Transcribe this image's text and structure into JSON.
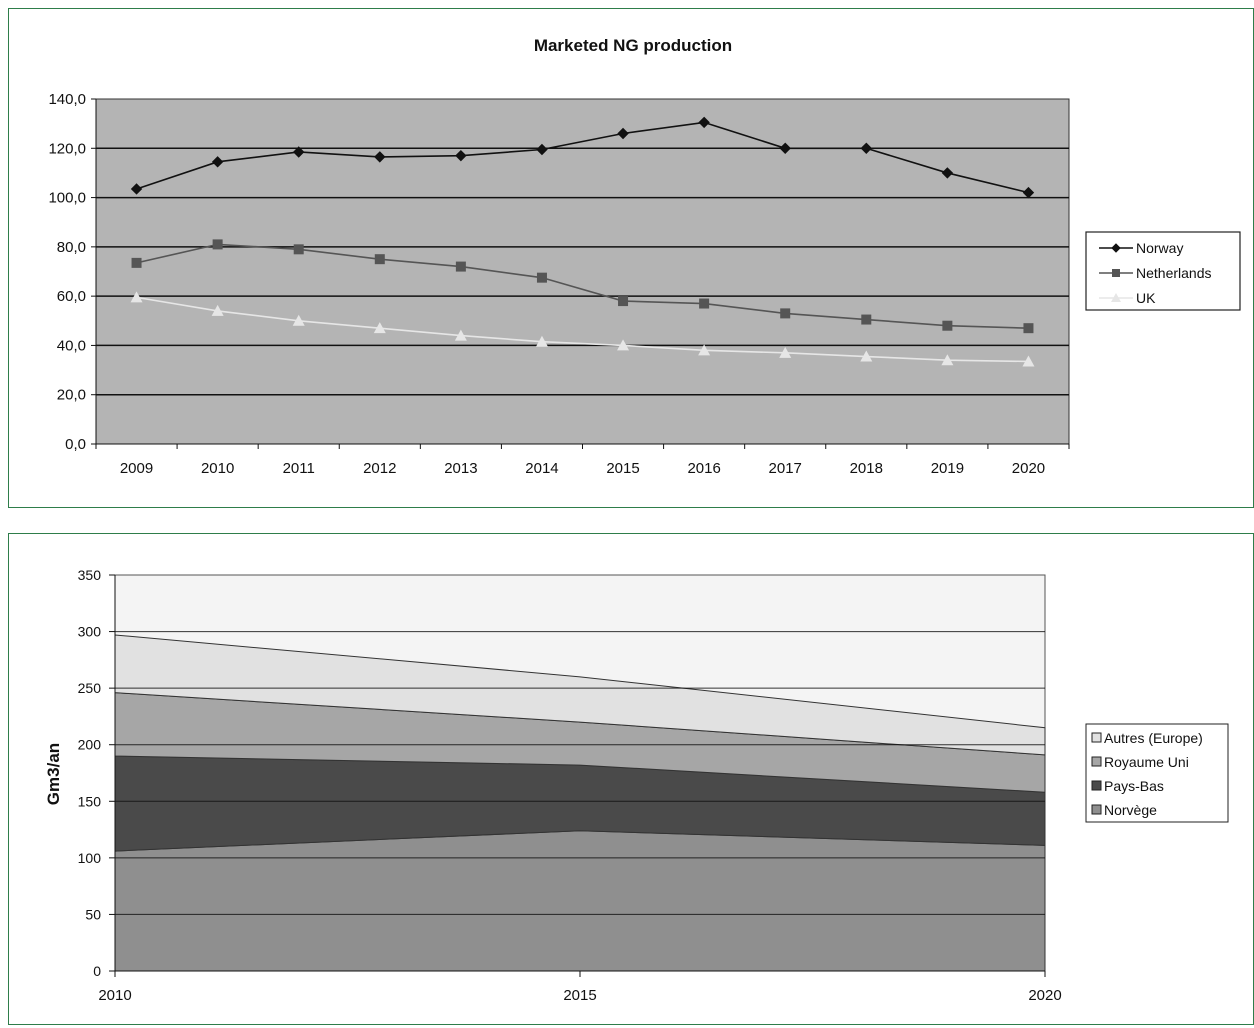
{
  "chart_data": [
    {
      "type": "line",
      "title": "Marketed NG production",
      "xlabel": "",
      "ylabel": "",
      "categories": [
        "2009",
        "2010",
        "2011",
        "2012",
        "2013",
        "2014",
        "2015",
        "2016",
        "2017",
        "2018",
        "2019",
        "2020"
      ],
      "y_ticks": [
        "0,0",
        "20,0",
        "40,0",
        "60,0",
        "80,0",
        "100,0",
        "120,0",
        "140,0"
      ],
      "ylim": [
        0,
        140
      ],
      "grid": true,
      "legend_position": "right",
      "series": [
        {
          "name": "Norway",
          "color": "#111111",
          "marker": "diamond",
          "values": [
            103.5,
            114.5,
            118.5,
            116.5,
            117,
            119.5,
            126,
            130.5,
            120,
            120,
            110,
            102
          ]
        },
        {
          "name": "Netherlands",
          "color": "#555555",
          "marker": "square",
          "values": [
            73.5,
            81,
            79,
            75,
            72,
            67.5,
            58,
            57,
            53,
            50.5,
            48,
            47
          ]
        },
        {
          "name": "UK",
          "color": "#e6e6e6",
          "marker": "triangle",
          "values": [
            59.5,
            54,
            50,
            47,
            44,
            41.5,
            40,
            38,
            37,
            35.5,
            34,
            33.5
          ]
        }
      ],
      "colors": {
        "plot_bg": "#b4b4b4"
      }
    },
    {
      "type": "area",
      "title": "",
      "xlabel": "",
      "ylabel": "Gm3/an",
      "x": [
        2010,
        2015,
        2020
      ],
      "x_ticks": [
        "2010",
        "2015",
        "2020"
      ],
      "y_ticks": [
        "0",
        "50",
        "100",
        "150",
        "200",
        "250",
        "300",
        "350"
      ],
      "ylim": [
        0,
        350
      ],
      "grid": true,
      "stacked": true,
      "legend_position": "right",
      "series": [
        {
          "name": "Norvège",
          "color": "#8f8f8f",
          "values": [
            106,
            124,
            111
          ]
        },
        {
          "name": "Pays-Bas",
          "color": "#4a4a4a",
          "values": [
            84,
            58,
            47
          ]
        },
        {
          "name": "Royaume Uni",
          "color": "#a6a6a6",
          "values": [
            56,
            38,
            33
          ]
        },
        {
          "name": "Autres (Europe)",
          "color": "#e1e1e1",
          "values": [
            51,
            40,
            24
          ]
        }
      ],
      "legend_order": [
        "Autres (Europe)",
        "Royaume Uni",
        "Pays-Bas",
        "Norvège"
      ],
      "colors": {
        "plot_bg": "#f4f4f4"
      }
    }
  ]
}
